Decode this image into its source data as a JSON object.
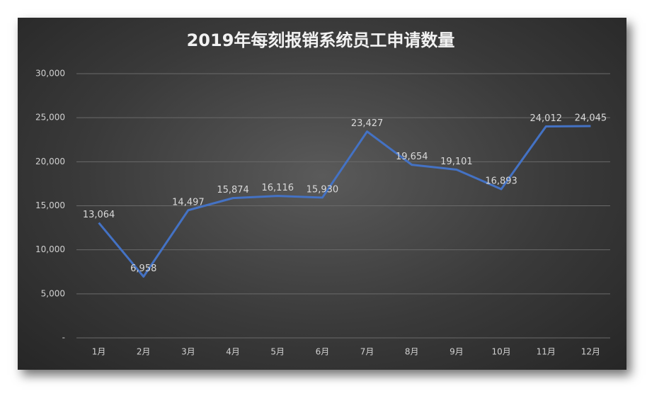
{
  "chart_data": {
    "type": "line",
    "title": "2019年每刻报销系统员工申请数量",
    "categories": [
      "1月",
      "2月",
      "3月",
      "4月",
      "5月",
      "6月",
      "7月",
      "8月",
      "9月",
      "10月",
      "11月",
      "12月"
    ],
    "series": [
      {
        "color": "#4472c4",
        "values": [
          13064,
          6958,
          14497,
          15874,
          16116,
          15930,
          23427,
          19654,
          19101,
          16893,
          24012,
          24045
        ],
        "value_labels": [
          "13,064",
          "6,958",
          "14,497",
          "15,874",
          "16,116",
          "15,930",
          "23,427",
          "19,654",
          "19,101",
          "16,893",
          "24,012",
          "24,045"
        ]
      }
    ],
    "ylim": [
      0,
      30000
    ],
    "yticks": [
      {
        "value": 0,
        "label": "-"
      },
      {
        "value": 5000,
        "label": "5,000"
      },
      {
        "value": 10000,
        "label": "10,000"
      },
      {
        "value": 15000,
        "label": "15,000"
      },
      {
        "value": 20000,
        "label": "20,000"
      },
      {
        "value": 25000,
        "label": "25,000"
      },
      {
        "value": 30000,
        "label": "30,000"
      }
    ],
    "grid": true
  }
}
